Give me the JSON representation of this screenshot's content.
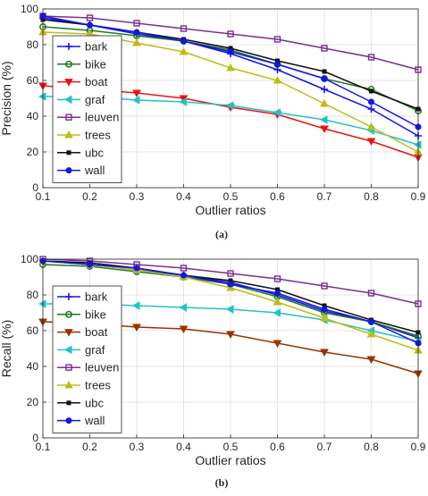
{
  "figure": {
    "caption_a": "(a)",
    "caption_b": "(b)"
  },
  "colors": {
    "bark": "#1515e8",
    "bike": "#1e7a1e",
    "boat_a": "#e81414",
    "boat_b": "#993300",
    "graf": "#22c3c3",
    "leuven": "#7b2f8e",
    "trees": "#bdbd1a",
    "ubc": "#111111",
    "wall": "#1515e8"
  },
  "chart_data": [
    {
      "type": "line",
      "panel": "a",
      "xlabel": "Outlier ratios",
      "ylabel": "Precision (%)",
      "xlim": [
        0.1,
        0.9
      ],
      "ylim": [
        0,
        100
      ],
      "xticks": [
        "0.1",
        "0.2",
        "0.3",
        "0.4",
        "0.5",
        "0.6",
        "0.7",
        "0.8",
        "0.9"
      ],
      "yticks": [
        "0",
        "20",
        "40",
        "60",
        "80",
        "100"
      ],
      "grid": true,
      "legend_position": "left",
      "x": [
        0.1,
        0.2,
        0.3,
        0.4,
        0.5,
        0.6,
        0.7,
        0.8,
        0.9
      ],
      "series": [
        {
          "name": "bark",
          "color": "#1515e8",
          "marker": "plus",
          "values": [
            95,
            91,
            86,
            82,
            75,
            66,
            55,
            44,
            29
          ]
        },
        {
          "name": "bike",
          "color": "#1e7a1e",
          "marker": "circle",
          "values": [
            90,
            88,
            85,
            82,
            77,
            69,
            61,
            55,
            43
          ]
        },
        {
          "name": "boat",
          "color": "#e81414",
          "marker": "triangle-down",
          "values": [
            57,
            55,
            53,
            50,
            45,
            41,
            33,
            26,
            17
          ]
        },
        {
          "name": "graf",
          "color": "#22c3c3",
          "marker": "triangle-left",
          "values": [
            51,
            51,
            49,
            48,
            46,
            42,
            38,
            32,
            24
          ]
        },
        {
          "name": "leuven",
          "color": "#7b2f8e",
          "marker": "square",
          "values": [
            96,
            95,
            92,
            89,
            86,
            83,
            78,
            73,
            66
          ]
        },
        {
          "name": "trees",
          "color": "#bdbd1a",
          "marker": "triangle-up",
          "values": [
            87,
            86,
            81,
            76,
            67,
            60,
            47,
            34,
            20
          ]
        },
        {
          "name": "ubc",
          "color": "#111111",
          "marker": "square-small",
          "values": [
            94,
            91,
            87,
            83,
            78,
            71,
            65,
            54,
            44
          ]
        },
        {
          "name": "wall",
          "color": "#1515e8",
          "marker": "dot",
          "values": [
            96,
            91,
            87,
            82,
            76,
            69,
            61,
            48,
            34
          ]
        }
      ]
    },
    {
      "type": "line",
      "panel": "b",
      "xlabel": "Outlier ratios",
      "ylabel": "Recall (%)",
      "xlim": [
        0.1,
        0.9
      ],
      "ylim": [
        0,
        100
      ],
      "xticks": [
        "0.1",
        "0.2",
        "0.3",
        "0.4",
        "0.5",
        "0.6",
        "0.7",
        "0.8",
        "0.9"
      ],
      "yticks": [
        "0",
        "20",
        "40",
        "60",
        "80",
        "100"
      ],
      "grid": true,
      "legend_position": "left",
      "x": [
        0.1,
        0.2,
        0.3,
        0.4,
        0.5,
        0.6,
        0.7,
        0.8,
        0.9
      ],
      "series": [
        {
          "name": "bark",
          "color": "#1515e8",
          "marker": "plus",
          "values": [
            99,
            97,
            94,
            91,
            87,
            80,
            71,
            65,
            56
          ]
        },
        {
          "name": "bike",
          "color": "#1e7a1e",
          "marker": "circle",
          "values": [
            97,
            96,
            93,
            90,
            86,
            79,
            70,
            65,
            57
          ]
        },
        {
          "name": "boat",
          "color": "#993300",
          "marker": "triangle-down",
          "values": [
            65,
            64,
            62,
            61,
            58,
            53,
            48,
            44,
            36
          ]
        },
        {
          "name": "graf",
          "color": "#22c3c3",
          "marker": "triangle-left",
          "values": [
            75,
            75,
            74,
            73,
            72,
            70,
            66,
            60,
            54
          ]
        },
        {
          "name": "leuven",
          "color": "#7b2f8e",
          "marker": "square",
          "values": [
            100,
            99,
            97,
            95,
            92,
            89,
            85,
            81,
            75
          ]
        },
        {
          "name": "trees",
          "color": "#bdbd1a",
          "marker": "triangle-up",
          "values": [
            99,
            97,
            94,
            90,
            84,
            76,
            67,
            58,
            49
          ]
        },
        {
          "name": "ubc",
          "color": "#111111",
          "marker": "square-small",
          "values": [
            99,
            98,
            95,
            91,
            88,
            83,
            74,
            66,
            59
          ]
        },
        {
          "name": "wall",
          "color": "#1515e8",
          "marker": "dot",
          "values": [
            99,
            97,
            95,
            91,
            86,
            81,
            72,
            65,
            53
          ]
        }
      ]
    }
  ]
}
